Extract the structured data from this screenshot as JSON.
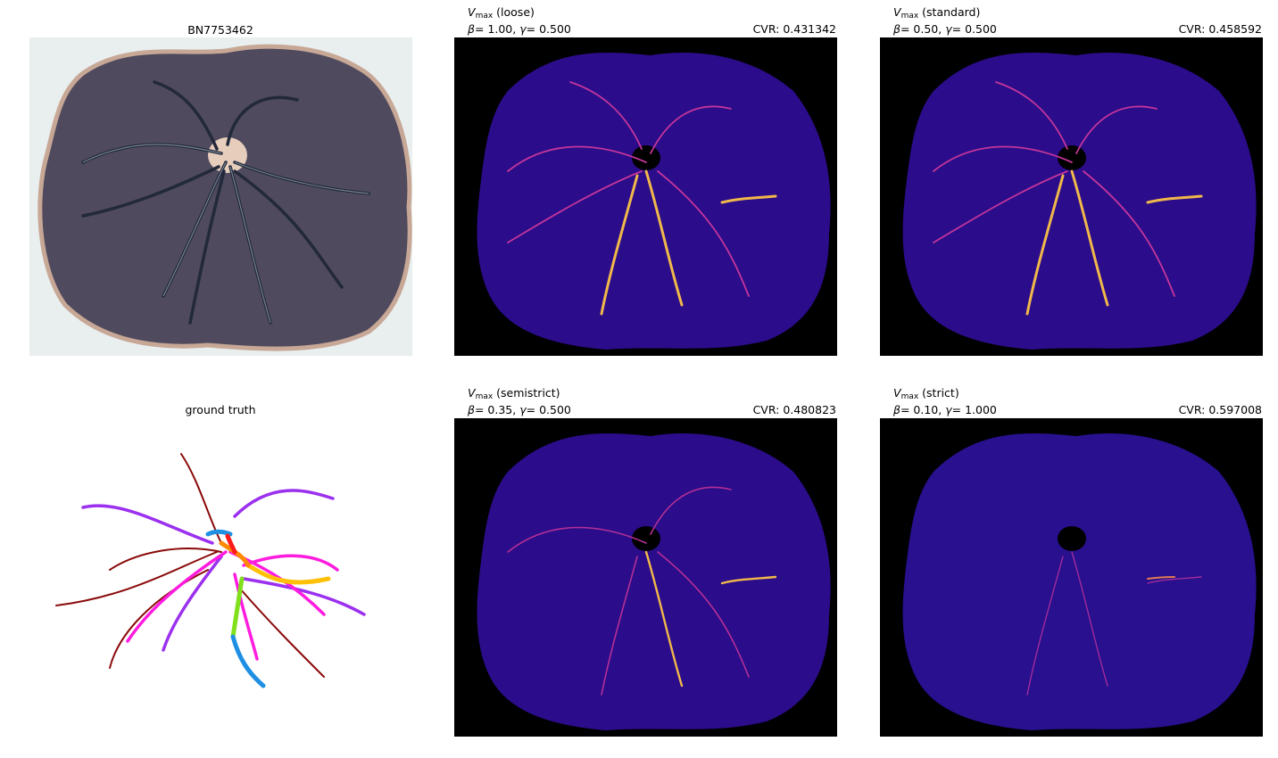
{
  "panels": [
    {
      "id": "photo",
      "title": "BN7753462"
    },
    {
      "id": "loose",
      "label": "(loose)",
      "params": "= 1.00, ",
      "gamma": "= 0.500",
      "cvr": "CVR: 0.431342"
    },
    {
      "id": "standard",
      "label": "(standard)",
      "params": "= 0.50, ",
      "gamma": "= 0.500",
      "cvr": "CVR: 0.458592"
    },
    {
      "id": "truth",
      "title": "ground truth"
    },
    {
      "id": "semistrict",
      "label": "(semistrict)",
      "params": "= 0.35, ",
      "gamma": "= 0.500",
      "cvr": "CVR: 0.480823"
    },
    {
      "id": "strict",
      "label": "(strict)",
      "params": "= 0.10, ",
      "gamma": "= 1.000",
      "cvr": "CVR: 0.597008"
    }
  ],
  "symbols": {
    "V": "V",
    "sub": "max",
    "beta": "β",
    "gamma": "γ"
  }
}
